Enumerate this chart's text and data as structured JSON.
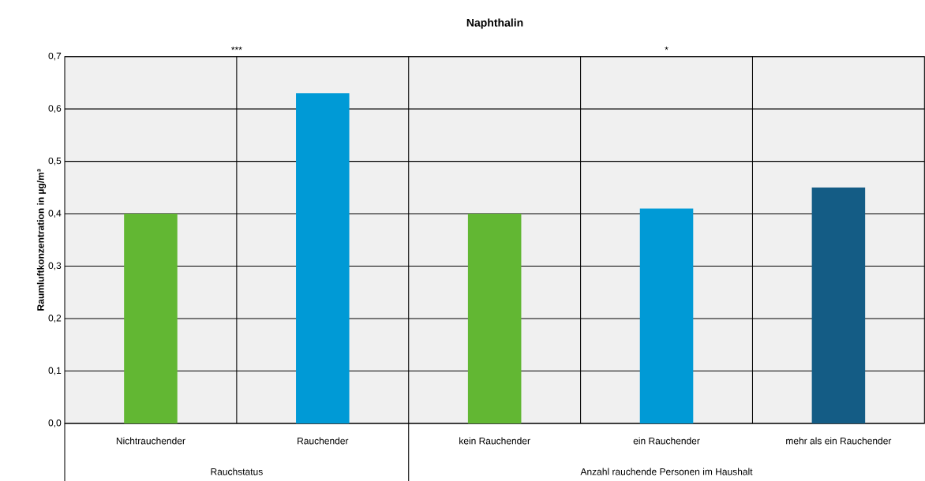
{
  "chart_data": {
    "type": "bar",
    "title": "Naphthalin",
    "ylabel": "Raumluftkonzentration in µg/m³",
    "categories": [
      "Nichtrauchender",
      "Rauchender",
      "kein Rauchender",
      "ein Rauchender",
      "mehr als ein Rauchender"
    ],
    "values": [
      0.4,
      0.63,
      0.4,
      0.41,
      0.45
    ],
    "colors": [
      "#62b733",
      "#009ad6",
      "#62b733",
      "#009ad6",
      "#145c85"
    ],
    "ylim": [
      0,
      0.7
    ],
    "yticks": [
      {
        "value": 0,
        "label": "0,0"
      },
      {
        "value": 0.1,
        "label": "0,1"
      },
      {
        "value": 0.2,
        "label": "0,2"
      },
      {
        "value": 0.3,
        "label": "0,3"
      },
      {
        "value": 0.4,
        "label": "0,4"
      },
      {
        "value": 0.5,
        "label": "0,5"
      },
      {
        "value": 0.6,
        "label": "0,6"
      },
      {
        "value": 0.7,
        "label": "0,7"
      }
    ],
    "grid": "y",
    "annotations": [
      "***",
      "*",
      "Rauchstatus",
      "Anzahl rauchende Personen im Haushalt"
    ]
  }
}
